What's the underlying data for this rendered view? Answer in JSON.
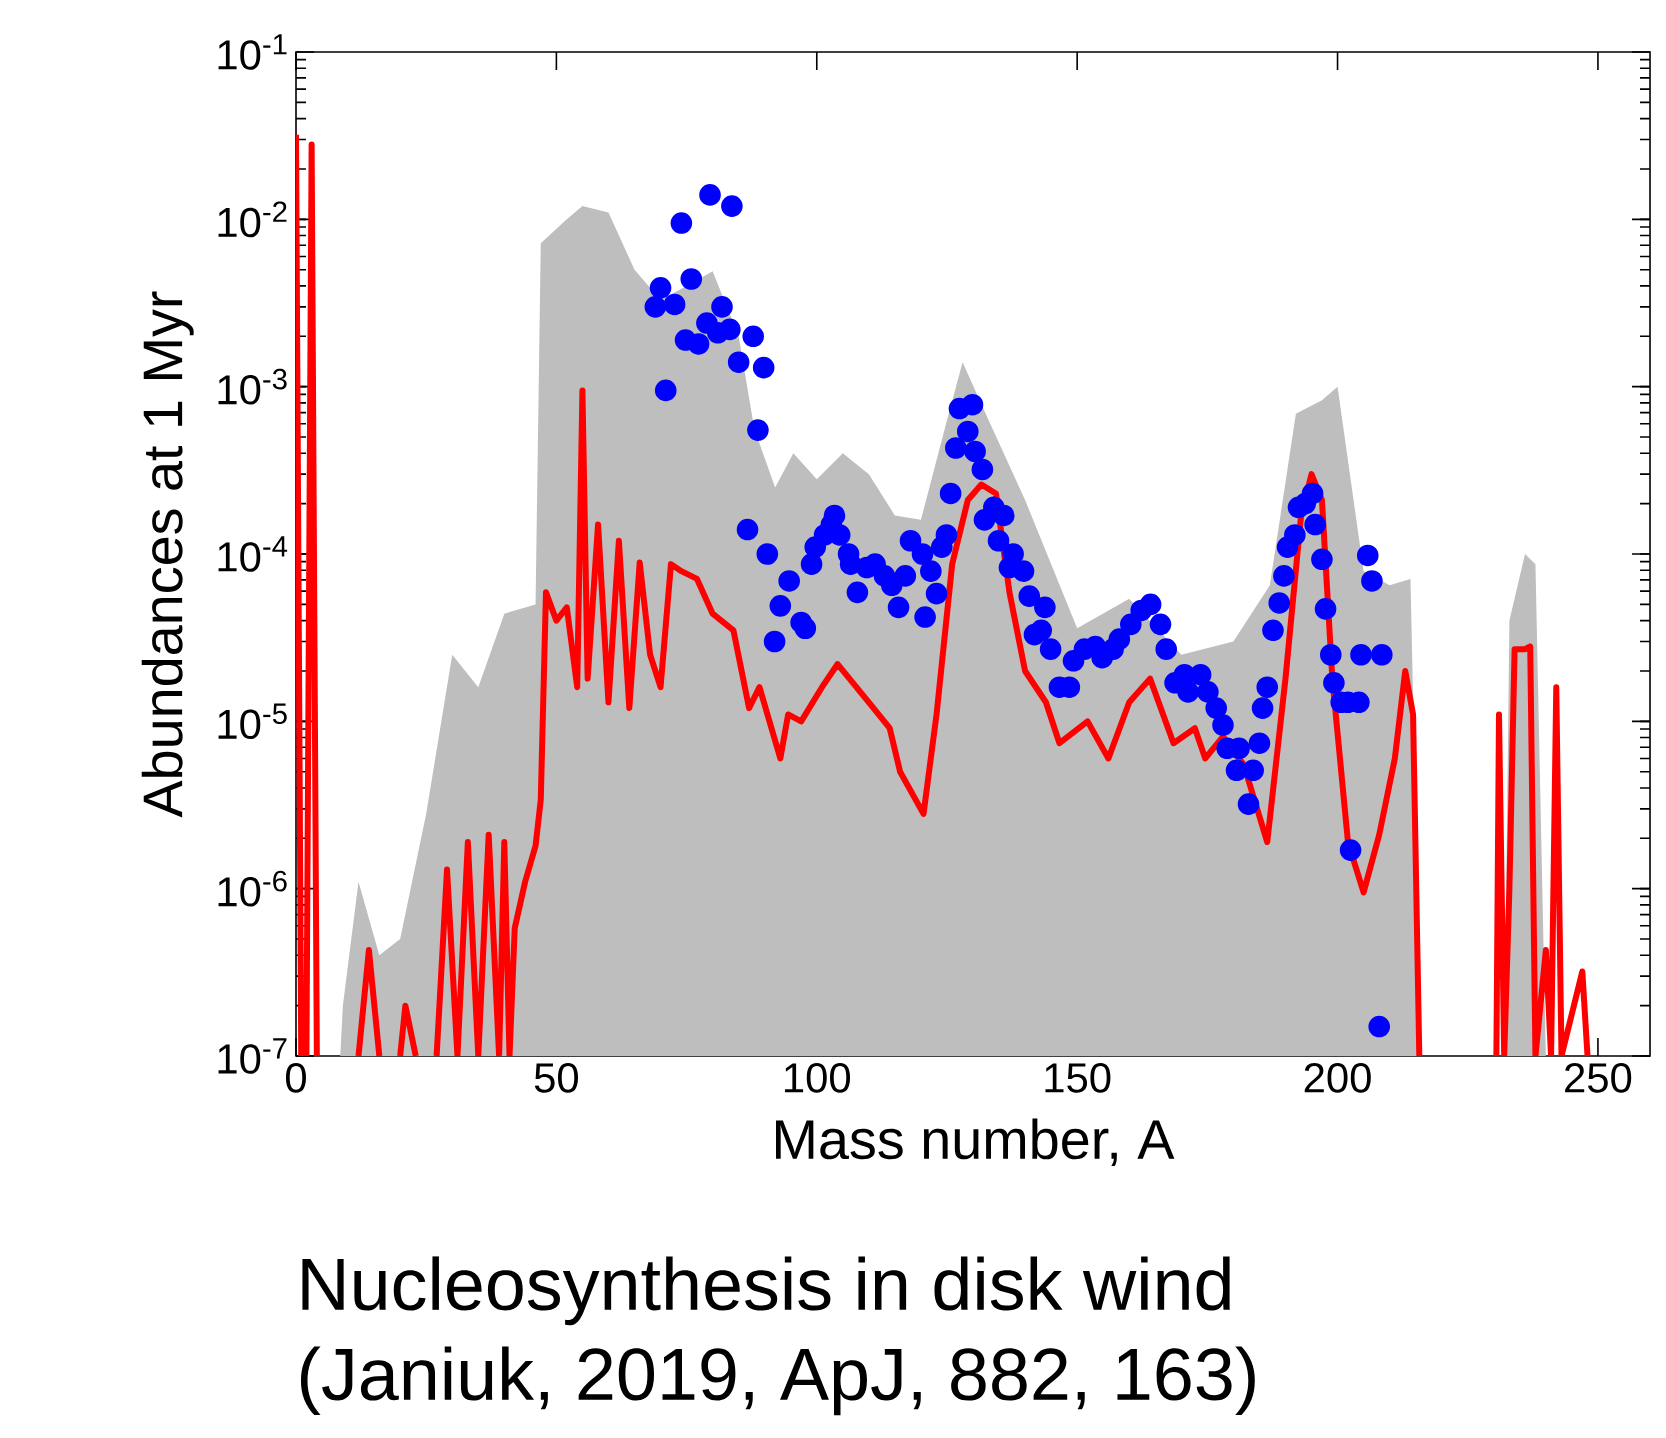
{
  "chart_data": {
    "type": "line",
    "xlabel": "Mass number, A",
    "ylabel": "Abundances at 1 Myr",
    "annotations": [
      "Nucleosynthesis in disk wind",
      "(Janiuk, 2019, ApJ, 882, 163)"
    ],
    "log": "y",
    "xlim": [
      0,
      260
    ],
    "ylim": [
      1e-07,
      0.1
    ],
    "xticks": [
      0,
      50,
      100,
      150,
      200,
      250
    ],
    "yticks": [
      {
        "value": 1e-07,
        "label": "10$^{-7}$"
      },
      {
        "value": 1e-06,
        "label": "10$^{-6}$"
      },
      {
        "value": 1e-05,
        "label": "10$^{-5}$"
      },
      {
        "value": 0.0001,
        "label": "10$^{-4}$"
      },
      {
        "value": 0.001,
        "label": "10$^{-3}$"
      },
      {
        "value": 0.01,
        "label": "10$^{-2}$"
      },
      {
        "value": 0.1,
        "label": "10$^{-1}$"
      }
    ],
    "series": [
      {
        "type": "area",
        "color": "#bebebe",
        "x": [
          8.5,
          9,
          12,
          16,
          20,
          25,
          30,
          35,
          40,
          46,
          47,
          52,
          55,
          60,
          65,
          70,
          75,
          80,
          85,
          88,
          92,
          95.5,
          100,
          105,
          110,
          115,
          120,
          125,
          128,
          133,
          140,
          150,
          160,
          170,
          180,
          187,
          192,
          197,
          200,
          205,
          210,
          214,
          216,
          224,
          232,
          233,
          236,
          238,
          240
        ],
        "values": [
          1e-07,
          2e-07,
          1.1e-06,
          4e-07,
          5e-07,
          2.8e-06,
          2.5e-05,
          1.6e-05,
          4.4e-05,
          5e-05,
          0.0072,
          0.01,
          0.012,
          0.011,
          0.005,
          0.0033,
          0.004,
          0.0049,
          0.002,
          0.00056,
          0.00025,
          0.0004,
          0.00028,
          0.0004,
          0.0003,
          0.00017,
          0.00016,
          0.00063,
          0.0014,
          0.00063,
          0.00021,
          3.6e-05,
          5.4e-05,
          2.5e-05,
          3e-05,
          6.5e-05,
          0.00069,
          0.00083,
          0.001,
          7.9e-05,
          6.5e-05,
          7.1e-05,
          1e-07,
          null,
          1e-07,
          4e-05,
          0.0001,
          8.7e-05,
          1e-07
        ]
      },
      {
        "color": "#ff0000",
        "x": [
          0,
          1,
          2,
          3,
          4,
          5,
          12,
          14,
          16,
          18,
          20,
          21,
          23,
          25,
          27,
          29,
          31,
          33,
          35,
          37,
          39,
          40,
          41,
          42,
          44,
          46,
          47,
          48,
          50,
          52,
          54,
          55,
          56,
          58,
          60,
          62,
          64,
          66,
          68,
          70,
          72,
          74,
          77,
          80,
          84,
          87,
          89,
          93,
          94.5,
          97,
          101,
          104,
          110,
          114,
          116,
          120.5,
          123,
          126,
          129,
          131.6,
          134.4,
          137,
          140,
          144,
          146.6,
          152,
          156,
          160,
          164,
          168.5,
          172.6,
          174.6,
          178,
          182,
          186.5,
          190,
          193,
          195,
          197,
          199,
          202,
          205,
          208,
          211,
          213,
          214.5,
          215.7,
          223,
          230.5,
          231,
          232,
          233,
          234,
          236,
          237,
          238,
          240,
          241,
          242,
          243,
          247,
          248
        ],
        "values": [
          0.032,
          1e-07,
          1e-07,
          0.028,
          1e-07,
          null,
          1e-07,
          4.3e-07,
          1e-07,
          null,
          1e-07,
          2e-07,
          1e-07,
          null,
          1e-07,
          1.3e-06,
          1e-07,
          1.9e-06,
          1e-07,
          2.1e-06,
          1e-07,
          1.9e-06,
          1e-07,
          5.8e-07,
          1.1e-06,
          1.8e-06,
          3.4e-06,
          5.9e-05,
          4e-05,
          4.8e-05,
          1.6e-05,
          0.00095,
          1.8e-05,
          0.00015,
          1.3e-05,
          0.00012,
          1.2e-05,
          8.9e-05,
          2.5e-05,
          1.6e-05,
          8.7e-05,
          7.9e-05,
          7.1e-05,
          4.4e-05,
          3.5e-05,
          1.2e-05,
          1.6e-05,
          6e-06,
          1.1e-05,
          1e-05,
          1.6e-05,
          2.2e-05,
          1.3e-05,
          9.1e-06,
          5e-06,
          2.8e-06,
          1.1e-05,
          8.7e-05,
          0.00021,
          0.00026,
          0.00023,
          5.9e-05,
          2e-05,
          1.3e-05,
          7.4e-06,
          1e-05,
          6e-06,
          1.3e-05,
          1.8e-05,
          7.4e-06,
          9.1e-06,
          6e-06,
          8.1e-06,
          5.5e-06,
          1.9e-06,
          1.8e-05,
          0.00017,
          0.0003,
          0.00021,
          1.8e-05,
          1.9e-06,
          9.5e-07,
          2.1e-06,
          6e-06,
          2e-05,
          1.1e-05,
          1e-07,
          null,
          1e-07,
          1.1e-05,
          1e-07,
          1e-06,
          2.7e-05,
          2.7e-05,
          2.8e-05,
          1e-07,
          4.3e-07,
          1e-07,
          1.6e-05,
          1e-07,
          3.2e-07,
          1e-07
        ]
      },
      {
        "type": "scatter",
        "color": "#0000ff",
        "marker": "circle",
        "x": [
          69,
          70,
          72.7,
          71,
          74,
          74.8,
          75.9,
          77.3,
          79.5,
          78.9,
          81,
          81.8,
          83.3,
          83.7,
          85,
          87.8,
          89.8,
          88.7,
          86.7,
          90.5,
          91.9,
          93,
          94.7,
          97,
          97.8,
          99,
          99.7,
          101.5,
          102.8,
          103.4,
          104.4,
          106.1,
          106.5,
          107.8,
          109.6,
          111.2,
          113,
          114.4,
          115.7,
          117,
          118,
          120.3,
          120.8,
          121.9,
          123,
          124,
          124.9,
          125.7,
          126.7,
          127.4,
          129,
          129.9,
          130.4,
          131.8,
          132.2,
          134,
          135.9,
          134.9,
          137.7,
          137,
          139.7,
          140.8,
          141.8,
          143.8,
          143.1,
          144.9,
          146.6,
          148.5,
          149.3,
          151.4,
          153.5,
          154.8,
          156.9,
          158.1,
          160.3,
          162.3,
          164.1,
          166,
          167.1,
          168.8,
          170.6,
          171.3,
          173.7,
          175.1,
          176.7,
          178,
          178.8,
          180.6,
          181.1,
          182.9,
          183.8,
          185,
          185.6,
          186.5,
          187.6,
          188.8,
          189.7,
          190.4,
          191.8,
          192.5,
          193.8,
          195.2,
          195.7,
          197,
          197.7,
          198.7,
          199.3,
          200.7,
          202,
          204.1,
          202.5,
          204.5,
          205.8,
          206.6,
          208.5,
          208
        ],
        "values": [
          0.003,
          0.0039,
          0.0031,
          0.00095,
          0.0095,
          0.0019,
          0.0044,
          0.0018,
          0.014,
          0.0024,
          0.0021,
          0.003,
          0.0022,
          0.012,
          0.0014,
          0.002,
          0.0013,
          0.00055,
          0.00014,
          0.0001,
          3e-05,
          4.9e-05,
          6.9e-05,
          3.9e-05,
          3.6e-05,
          8.7e-05,
          0.00011,
          0.00013,
          0.00015,
          0.00017,
          0.00013,
          0.0001,
          8.7e-05,
          5.9e-05,
          8.3e-05,
          8.7e-05,
          7.4e-05,
          6.5e-05,
          4.8e-05,
          7.4e-05,
          0.00012,
          0.0001,
          4.2e-05,
          7.9e-05,
          5.8e-05,
          0.00011,
          0.00013,
          0.00023,
          0.00043,
          0.00074,
          0.00054,
          0.00078,
          0.00041,
          0.00032,
          0.00016,
          0.00019,
          0.00017,
          0.00012,
          0.0001,
          8.3e-05,
          7.9e-05,
          5.6e-05,
          3.3e-05,
          4.8e-05,
          3.5e-05,
          2.7e-05,
          1.6e-05,
          1.6e-05,
          2.3e-05,
          2.7e-05,
          2.8e-05,
          2.4e-05,
          2.7e-05,
          3.1e-05,
          3.8e-05,
          4.6e-05,
          5e-05,
          3.8e-05,
          2.7e-05,
          1.7e-05,
          1.9e-05,
          1.5e-05,
          1.9e-05,
          1.5e-05,
          1.2e-05,
          9.5e-06,
          6.9e-06,
          5.1e-06,
          6.9e-06,
          3.2e-06,
          5.1e-06,
          7.4e-06,
          1.2e-05,
          1.6e-05,
          3.5e-05,
          5.1e-05,
          7.4e-05,
          0.00011,
          0.00013,
          0.00019,
          0.0002,
          0.00023,
          0.00015,
          9.3e-05,
          4.7e-05,
          2.5e-05,
          1.7e-05,
          1.3e-05,
          1.3e-05,
          1.3e-05,
          1.7e-06,
          2.5e-05,
          9.8e-05,
          6.9e-05,
          2.5e-05,
          1.5e-07
        ]
      }
    ]
  }
}
